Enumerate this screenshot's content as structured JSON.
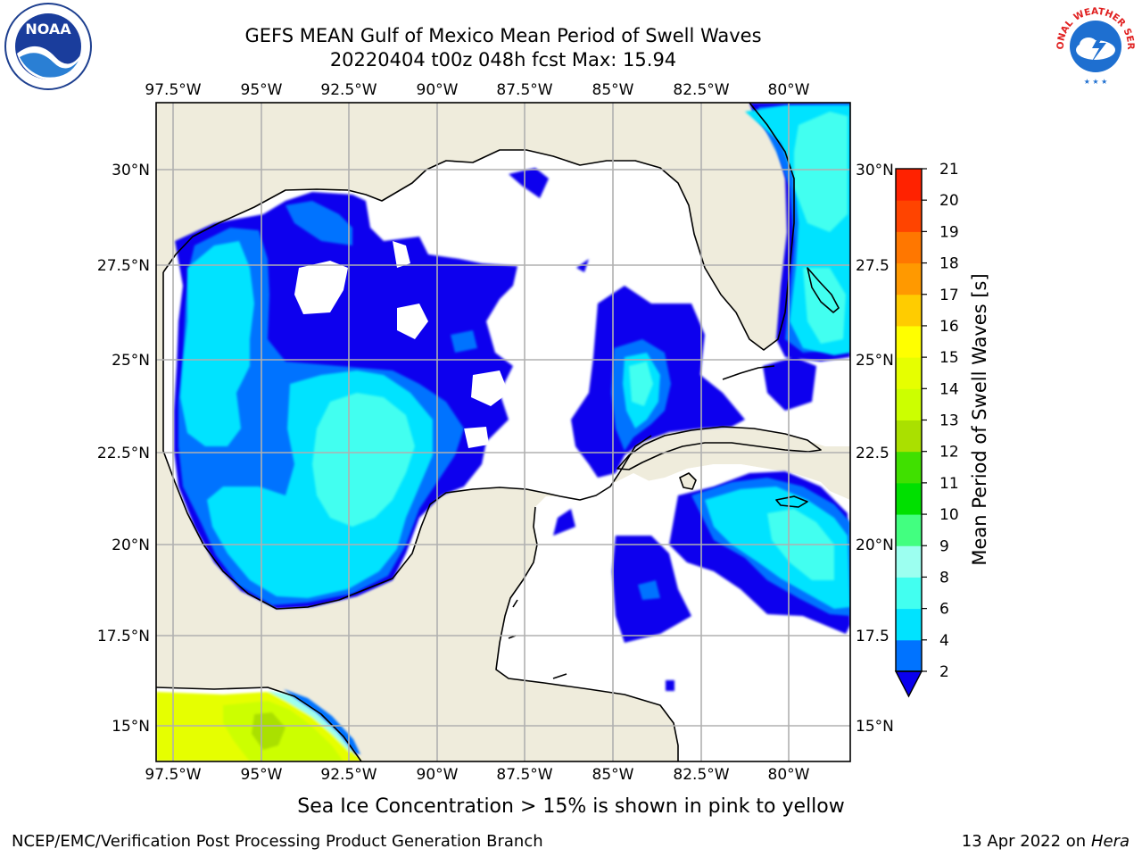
{
  "header": {
    "title_line1": "GEFS MEAN Gulf of Mexico Mean Period of Swell Waves",
    "title_line2": "20220404 t00z 048h fcst   Max: 15.94"
  },
  "logos": {
    "left": "noaa-logo",
    "left_text": "NOAA",
    "right": "national-weather-service-logo",
    "right_text": "NATIONAL WEATHER SERVICE"
  },
  "map": {
    "lon_ticks": [
      "97.5°W",
      "95°W",
      "92.5°W",
      "90°W",
      "87.5°W",
      "85°W",
      "82.5°W",
      "80°W"
    ],
    "lat_ticks": [
      "30°N",
      "27.5°N",
      "25°N",
      "22.5°N",
      "20°N",
      "17.5°N",
      "15°N"
    ],
    "lat_ticks_right": [
      "30°N",
      "27.5",
      "25°N",
      "22.5",
      "20°N",
      "17.5",
      "15°N"
    ],
    "lon_range": [
      -98.1,
      -79.2
    ],
    "lat_range": [
      14.0,
      31.8
    ],
    "land_color": "#efecdc",
    "ocean_color": "#ffffff",
    "grid_color": "#b0b0b0"
  },
  "colorbar": {
    "label": "Mean Period of Swell Waves [s]",
    "tick_labels": [
      "2",
      "4",
      "6",
      "8",
      "9",
      "10",
      "11",
      "12",
      "13",
      "14",
      "15",
      "16",
      "17",
      "18",
      "19",
      "20",
      "21"
    ],
    "colors": [
      "#0a00ee",
      "#0073ff",
      "#00e3ff",
      "#42fff0",
      "#9cfff0",
      "#42ff80",
      "#00e000",
      "#40e000",
      "#aae000",
      "#ccff00",
      "#e6ff00",
      "#ffff00",
      "#ffcc00",
      "#ff9900",
      "#ff7700",
      "#ff4400",
      "#ff2200",
      "#ff0000"
    ]
  },
  "notes": {
    "sea_ice": "Sea Ice Concentration > 15% is shown in pink to yellow"
  },
  "footer": {
    "left": "NCEP/EMC/Verification Post Processing Product Generation Branch",
    "date": "13 Apr 2022 on ",
    "machine": "Hera"
  }
}
